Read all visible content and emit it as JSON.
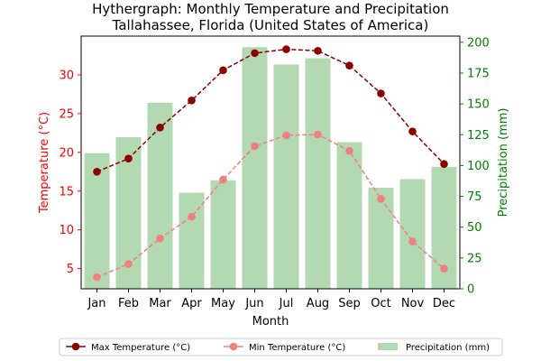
{
  "chart_data": {
    "type": "bar",
    "title_line1": "Hythergraph: Monthly Temperature and Precipitation",
    "title_line2": "Tallahassee, Florida (United States of America)",
    "xlabel": "Month",
    "ylabel_left": "Temperature (°C)",
    "ylabel_right": "Precipitation (mm)",
    "categories": [
      "Jan",
      "Feb",
      "Mar",
      "Apr",
      "May",
      "Jun",
      "Jul",
      "Aug",
      "Sep",
      "Oct",
      "Nov",
      "Dec"
    ],
    "ylim_left": [
      2.4,
      35.0
    ],
    "ylim_right": [
      0,
      205
    ],
    "yticks_left": [
      5,
      10,
      15,
      20,
      25,
      30
    ],
    "yticks_right": [
      0,
      25,
      50,
      75,
      100,
      125,
      150,
      175,
      200
    ],
    "grid": false,
    "legend_position": "bottom-center",
    "series": [
      {
        "name": "Max Temperature (°C)",
        "axis": "left",
        "kind": "line",
        "values": [
          17.5,
          19.2,
          23.2,
          26.7,
          30.6,
          32.8,
          33.3,
          33.1,
          31.2,
          27.6,
          22.7,
          18.5
        ]
      },
      {
        "name": "Min Temperature (°C)",
        "axis": "left",
        "kind": "line",
        "values": [
          3.9,
          5.6,
          8.9,
          11.7,
          16.5,
          20.8,
          22.2,
          22.3,
          20.2,
          14.0,
          8.5,
          5.0
        ]
      },
      {
        "name": "Precipitation (mm)",
        "axis": "right",
        "kind": "bar",
        "values": [
          110,
          123,
          151,
          78,
          88,
          196,
          182,
          187,
          119,
          82,
          89,
          99
        ]
      }
    ],
    "colors": {
      "max": "#8b0000",
      "min": "#f08080",
      "precip": "#b2d9b2",
      "left_axis": "#ff0000",
      "right_axis": "#008000",
      "text": "#000000"
    }
  }
}
